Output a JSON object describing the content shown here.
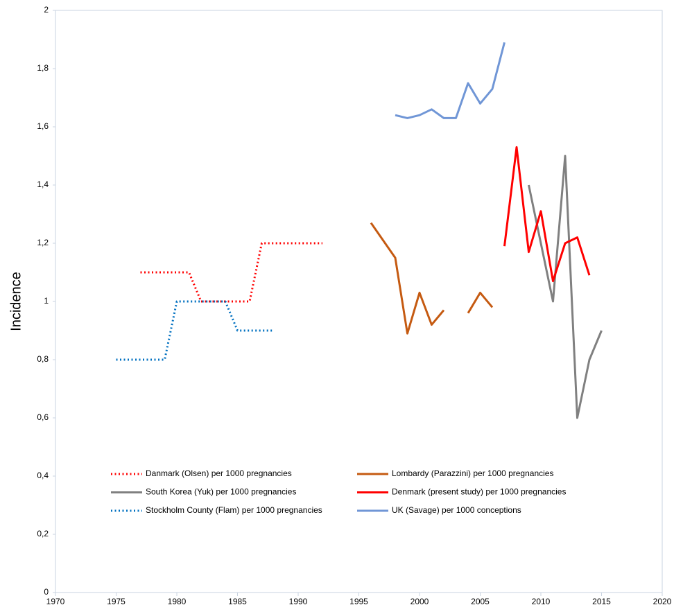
{
  "chart_data": {
    "type": "line",
    "y_label": "Incidence",
    "xlim": [
      1970,
      2020
    ],
    "xticks": [
      1970,
      1975,
      1980,
      1985,
      1990,
      1995,
      2000,
      2005,
      2010,
      2015,
      2020
    ],
    "ylim": [
      0,
      2
    ],
    "yticks": [
      0,
      {
        "value": 0.2,
        "label": "0,2"
      },
      {
        "value": 0.4,
        "label": "0,4"
      },
      {
        "value": 0.6,
        "label": "0,6"
      },
      {
        "value": 0.8,
        "label": "0,8"
      },
      1,
      {
        "value": 1.2,
        "label": "1,2"
      },
      {
        "value": 1.4,
        "label": "1,4"
      },
      {
        "value": 1.6,
        "label": "1,6"
      },
      {
        "value": 1.8,
        "label": "1,8"
      },
      2
    ],
    "grid": false,
    "series": [
      {
        "name": "Danmark (Olsen) per 1000 pregnancies",
        "color": "#ff0000",
        "style": "dotted",
        "x": [
          1977,
          1981,
          1982,
          1986,
          1987,
          1992
        ],
        "values": [
          1.1,
          1.1,
          1.0,
          1.0,
          1.2,
          1.2
        ]
      },
      {
        "name": "Lombardy (Parazzini) per 1000 pregnancies",
        "color": "#c55a11",
        "style": "solid",
        "x": [
          1996,
          1998,
          1999,
          2000,
          2001,
          2002,
          2003,
          2004,
          2005,
          2006
        ],
        "values": [
          1.27,
          1.15,
          0.89,
          1.03,
          0.92,
          0.97,
          null,
          0.96,
          1.03,
          0.98
        ]
      },
      {
        "name": "South Korea (Yuk) per 1000 pregnancies",
        "color": "#808080",
        "style": "solid",
        "x": [
          2009,
          2011,
          2012,
          2013,
          2014,
          2015
        ],
        "values": [
          1.4,
          1.0,
          1.5,
          0.6,
          0.8,
          0.9
        ]
      },
      {
        "name": "Denmark (present study) per 1000 pregnancies",
        "color": "#ff0000",
        "style": "solid",
        "x": [
          2007,
          2008,
          2009,
          2010,
          2011,
          2012,
          2013,
          2014
        ],
        "values": [
          1.19,
          1.53,
          1.17,
          1.31,
          1.07,
          1.2,
          1.22,
          1.09
        ]
      },
      {
        "name": "Stockholm County (Flam) per 1000 pregnancies",
        "color": "#0070c0",
        "style": "dotted",
        "x": [
          1975,
          1979,
          1980,
          1984,
          1985,
          1988
        ],
        "values": [
          0.8,
          0.8,
          1.0,
          1.0,
          0.9,
          0.9
        ]
      },
      {
        "name": "UK (Savage) per 1000 conceptions",
        "color": "#7096d6",
        "style": "solid",
        "x": [
          1998,
          1999,
          2000,
          2001,
          2002,
          2003,
          2004,
          2005,
          2006,
          2007
        ],
        "values": [
          1.64,
          1.63,
          1.64,
          1.66,
          1.63,
          1.63,
          1.75,
          1.68,
          1.73,
          1.89
        ]
      }
    ]
  }
}
